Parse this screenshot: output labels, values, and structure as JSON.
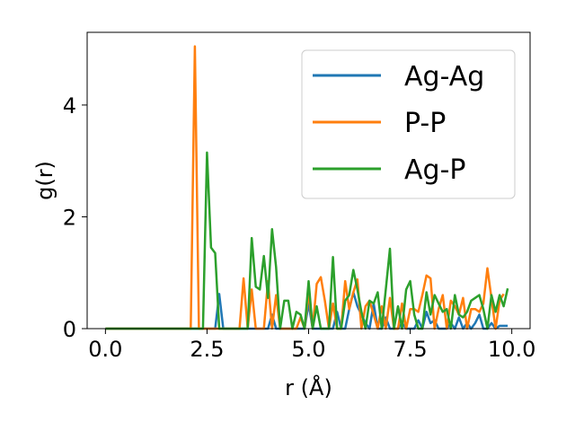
{
  "chart_data": {
    "type": "line",
    "xlabel": "r (Å)",
    "ylabel": "g(r)",
    "xlim": [
      -0.45,
      10.45
    ],
    "ylim": [
      0,
      5.3
    ],
    "xticks": [
      {
        "value": 0.0,
        "label": "0.0"
      },
      {
        "value": 2.5,
        "label": "2.5"
      },
      {
        "value": 5.0,
        "label": "5.0"
      },
      {
        "value": 7.5,
        "label": "7.5"
      },
      {
        "value": 10.0,
        "label": "10.0"
      }
    ],
    "yticks": [
      {
        "value": 0,
        "label": "0"
      },
      {
        "value": 2,
        "label": "2"
      },
      {
        "value": 4,
        "label": "4"
      }
    ],
    "legend_position": "upper-right",
    "grid": false,
    "series": [
      {
        "name": "Ag-Ag",
        "color": "#1f77b4",
        "x": [
          0.0,
          2.6,
          2.7,
          2.8,
          2.9,
          3.0,
          3.1,
          3.2,
          3.3,
          3.4,
          3.5,
          3.6,
          3.7,
          3.8,
          3.9,
          4.0,
          4.1,
          4.2,
          4.3,
          4.4,
          4.5,
          4.6,
          4.7,
          4.8,
          4.9,
          5.0,
          5.1,
          5.2,
          5.3,
          5.4,
          5.5,
          5.6,
          5.7,
          5.8,
          5.9,
          6.0,
          6.1,
          6.2,
          6.3,
          6.4,
          6.5,
          6.6,
          6.7,
          6.8,
          6.9,
          7.0,
          7.1,
          7.2,
          7.3,
          7.4,
          7.5,
          7.6,
          7.7,
          7.8,
          7.9,
          8.0,
          8.1,
          8.2,
          8.3,
          8.4,
          8.5,
          8.6,
          8.7,
          8.8,
          8.9,
          9.0,
          9.1,
          9.2,
          9.3,
          9.4,
          9.5,
          9.6,
          9.7,
          9.8,
          9.9
        ],
        "y": [
          0.0,
          0.0,
          0.0,
          0.62,
          0.0,
          0.0,
          0.0,
          0.0,
          0.0,
          0.0,
          0.0,
          0.0,
          0.0,
          0.0,
          0.0,
          0.0,
          0.25,
          0.0,
          0.0,
          0.0,
          0.0,
          0.0,
          0.0,
          0.0,
          0.0,
          0.45,
          0.0,
          0.0,
          0.0,
          0.0,
          0.0,
          0.0,
          0.3,
          0.0,
          0.0,
          0.35,
          0.65,
          0.4,
          0.25,
          0.1,
          0.0,
          0.45,
          0.0,
          0.0,
          0.2,
          0.0,
          0.0,
          0.0,
          0.1,
          0.0,
          0.0,
          0.0,
          0.15,
          0.0,
          0.3,
          0.1,
          0.15,
          0.0,
          0.0,
          0.0,
          0.1,
          0.0,
          0.2,
          0.0,
          0.1,
          0.0,
          0.1,
          0.25,
          0.0,
          0.0,
          0.1,
          0.0,
          0.05,
          0.05,
          0.05
        ]
      },
      {
        "name": "P-P",
        "color": "#ff7f0e",
        "x": [
          0.0,
          2.1,
          2.2,
          2.3,
          2.4,
          2.5,
          2.6,
          2.7,
          2.8,
          2.9,
          3.0,
          3.1,
          3.2,
          3.3,
          3.4,
          3.5,
          3.6,
          3.7,
          3.8,
          3.9,
          4.0,
          4.1,
          4.2,
          4.3,
          4.4,
          4.5,
          4.6,
          4.7,
          4.8,
          4.9,
          5.0,
          5.1,
          5.2,
          5.3,
          5.4,
          5.5,
          5.6,
          5.7,
          5.8,
          5.9,
          6.0,
          6.1,
          6.2,
          6.3,
          6.4,
          6.5,
          6.6,
          6.7,
          6.8,
          6.9,
          7.0,
          7.1,
          7.2,
          7.3,
          7.4,
          7.5,
          7.6,
          7.7,
          7.8,
          7.9,
          8.0,
          8.1,
          8.2,
          8.3,
          8.4,
          8.5,
          8.6,
          8.7,
          8.8,
          8.9,
          9.0,
          9.1,
          9.2,
          9.3,
          9.4,
          9.5,
          9.6,
          9.7,
          9.8
        ],
        "y": [
          0.0,
          0.0,
          5.05,
          0.0,
          0.0,
          0.0,
          0.0,
          0.0,
          0.0,
          0.0,
          0.0,
          0.0,
          0.0,
          0.0,
          0.9,
          0.0,
          0.7,
          0.0,
          0.0,
          0.0,
          0.85,
          0.0,
          0.6,
          0.0,
          0.0,
          0.0,
          0.0,
          0.0,
          0.2,
          0.0,
          0.65,
          0.0,
          0.8,
          0.92,
          0.5,
          0.0,
          0.45,
          0.0,
          0.0,
          0.85,
          0.35,
          0.65,
          0.88,
          0.0,
          0.4,
          0.5,
          0.25,
          0.0,
          0.4,
          0.0,
          0.55,
          0.0,
          0.0,
          0.45,
          0.0,
          0.35,
          0.35,
          0.3,
          0.6,
          0.95,
          0.9,
          0.0,
          0.35,
          0.6,
          0.0,
          0.5,
          0.4,
          0.25,
          0.55,
          0.0,
          0.35,
          0.35,
          0.3,
          0.45,
          1.08,
          0.55,
          0.0,
          0.5,
          0.62
        ]
      },
      {
        "name": "Ag-P",
        "color": "#2ca02c",
        "x": [
          0.0,
          2.4,
          2.5,
          2.6,
          2.7,
          2.8,
          2.9,
          3.0,
          3.1,
          3.2,
          3.3,
          3.4,
          3.5,
          3.6,
          3.7,
          3.8,
          3.9,
          4.0,
          4.1,
          4.2,
          4.3,
          4.4,
          4.5,
          4.6,
          4.7,
          4.8,
          4.9,
          5.0,
          5.1,
          5.2,
          5.3,
          5.4,
          5.5,
          5.6,
          5.7,
          5.8,
          5.9,
          6.0,
          6.1,
          6.2,
          6.3,
          6.4,
          6.5,
          6.6,
          6.7,
          6.8,
          6.9,
          7.0,
          7.1,
          7.2,
          7.3,
          7.4,
          7.5,
          7.6,
          7.7,
          7.8,
          7.9,
          8.0,
          8.1,
          8.2,
          8.3,
          8.4,
          8.5,
          8.6,
          8.7,
          8.8,
          8.9,
          9.0,
          9.1,
          9.2,
          9.3,
          9.4,
          9.5,
          9.6,
          9.7,
          9.8,
          9.9
        ],
        "y": [
          0.0,
          0.0,
          3.15,
          1.45,
          1.35,
          0.0,
          0.0,
          0.0,
          0.0,
          0.0,
          0.0,
          0.0,
          0.0,
          1.62,
          0.75,
          0.7,
          1.3,
          0.55,
          1.78,
          1.1,
          0.0,
          0.5,
          0.5,
          0.0,
          0.3,
          0.25,
          0.0,
          0.85,
          0.0,
          0.4,
          0.0,
          0.0,
          0.0,
          1.28,
          0.0,
          0.0,
          0.5,
          0.6,
          1.05,
          0.7,
          0.3,
          0.0,
          0.5,
          0.45,
          0.65,
          0.0,
          0.7,
          1.43,
          0.0,
          0.4,
          0.0,
          0.7,
          0.85,
          0.25,
          0.0,
          0.0,
          0.65,
          0.25,
          0.6,
          0.45,
          0.3,
          0.35,
          0.0,
          0.6,
          0.25,
          0.2,
          0.3,
          0.5,
          0.55,
          0.6,
          0.35,
          0.0,
          0.6,
          0.3,
          0.6,
          0.4,
          0.72
        ]
      }
    ]
  }
}
